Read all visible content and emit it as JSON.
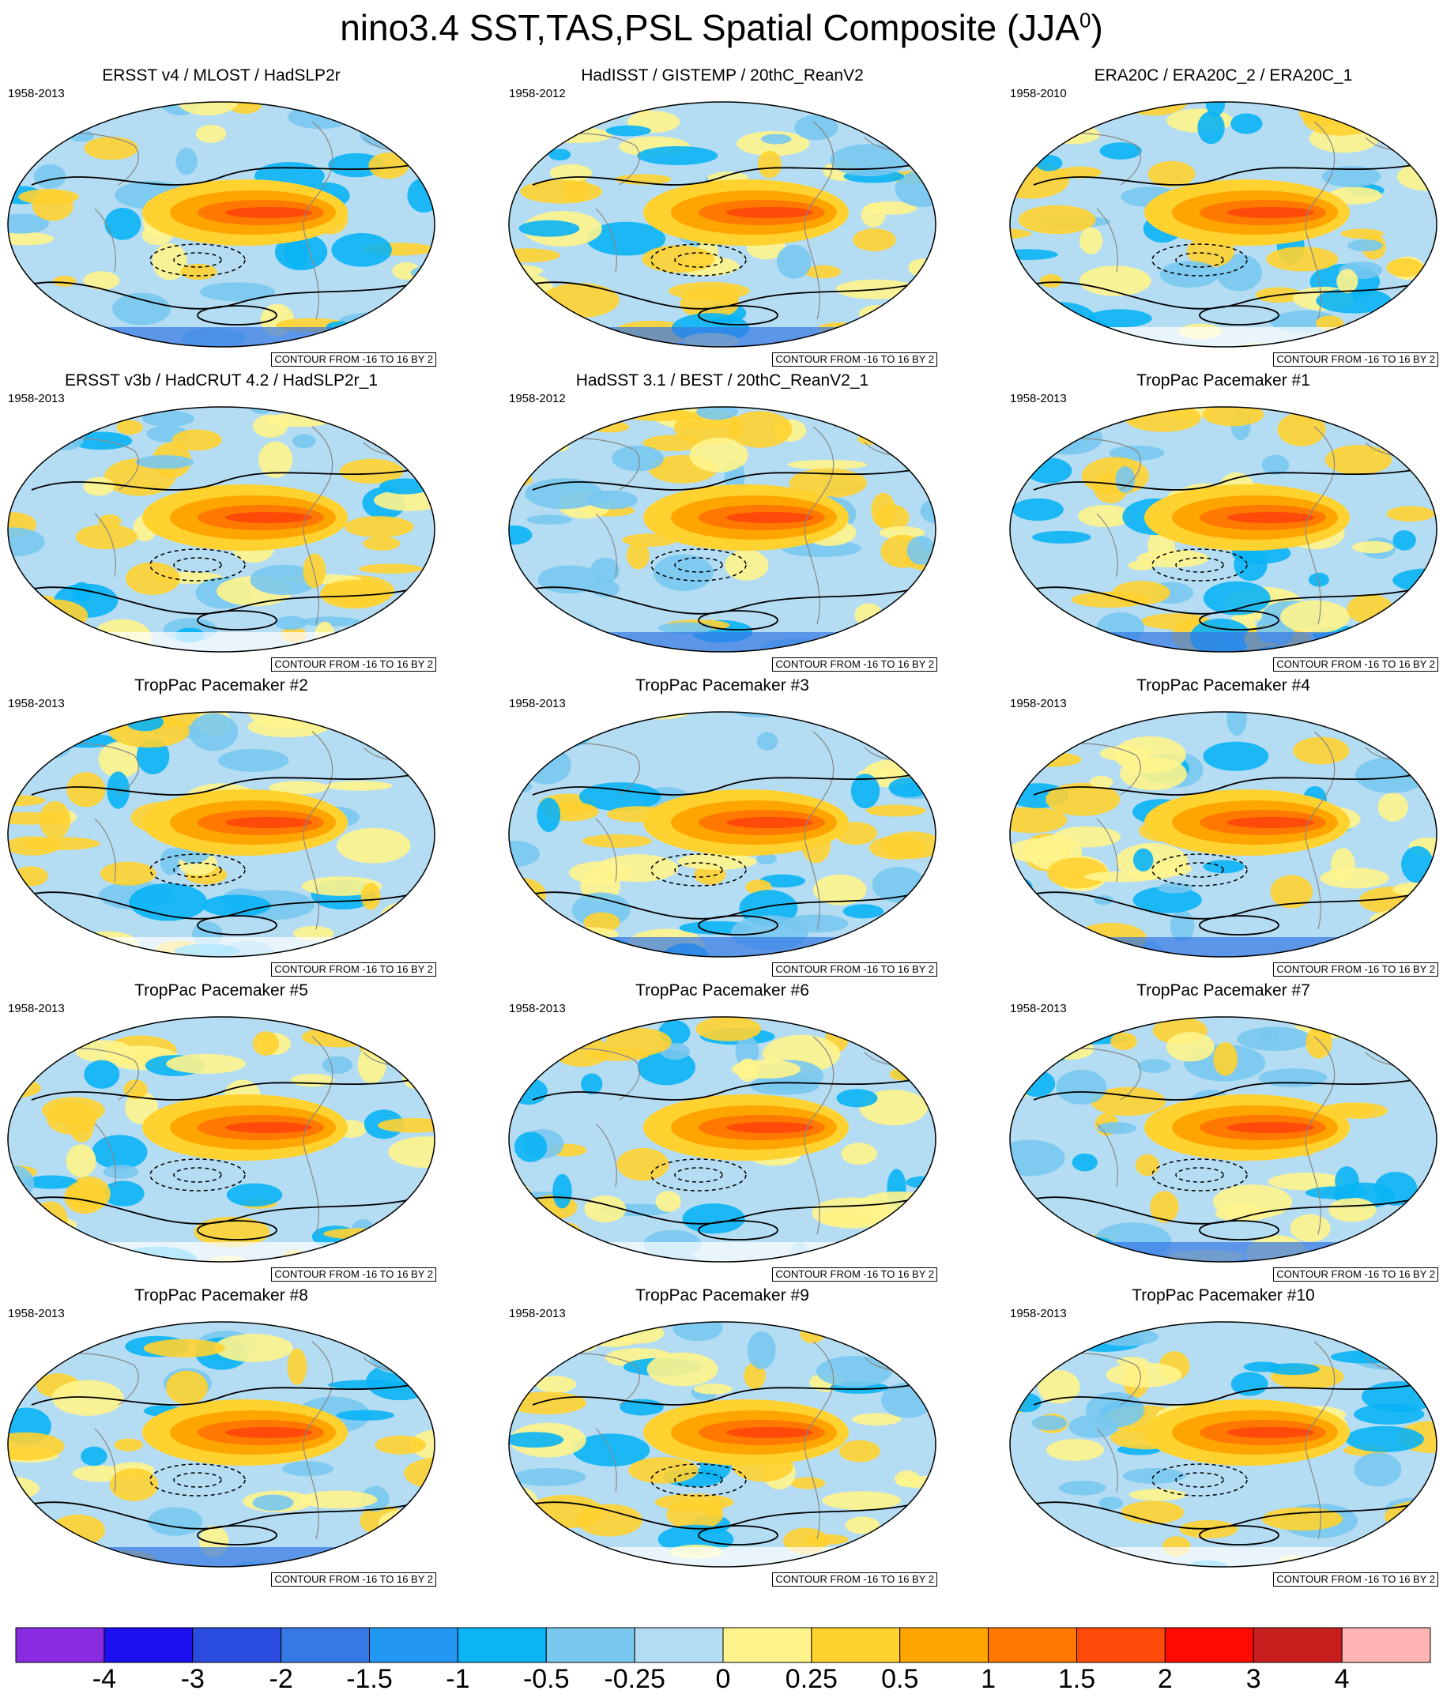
{
  "title": "nino3.4 SST,TAS,PSL Spatial Composite (JJA",
  "title_sup": "0",
  "title_close": ")",
  "contour_note": "CONTOUR FROM -16 TO 16 BY 2",
  "panels": [
    {
      "title": "ERSST v4 / MLOST / HadSLP2r",
      "period": "1958-2013",
      "variant": 0
    },
    {
      "title": "HadISST / GISTEMP / 20thC_ReanV2",
      "period": "1958-2012",
      "variant": 1
    },
    {
      "title": "ERA20C / ERA20C_2 / ERA20C_1",
      "period": "1958-2010",
      "variant": 2
    },
    {
      "title": "ERSST v3b / HadCRUT 4.2 / HadSLP2r_1",
      "period": "1958-2013",
      "variant": 3
    },
    {
      "title": "HadSST 3.1 / BEST / 20thC_ReanV2_1",
      "period": "1958-2012",
      "variant": 4
    },
    {
      "title": "TropPac Pacemaker #1",
      "period": "1958-2013",
      "variant": 5
    },
    {
      "title": "TropPac Pacemaker #2",
      "period": "1958-2013",
      "variant": 6
    },
    {
      "title": "TropPac Pacemaker #3",
      "period": "1958-2013",
      "variant": 7
    },
    {
      "title": "TropPac Pacemaker #4",
      "period": "1958-2013",
      "variant": 8
    },
    {
      "title": "TropPac Pacemaker #5",
      "period": "1958-2013",
      "variant": 9
    },
    {
      "title": "TropPac Pacemaker #6",
      "period": "1958-2013",
      "variant": 10
    },
    {
      "title": "TropPac Pacemaker #7",
      "period": "1958-2013",
      "variant": 11
    },
    {
      "title": "TropPac Pacemaker #8",
      "period": "1958-2013",
      "variant": 12
    },
    {
      "title": "TropPac Pacemaker #9",
      "period": "1958-2013",
      "variant": 13
    },
    {
      "title": "TropPac Pacemaker #10",
      "period": "1958-2013",
      "variant": 14
    }
  ],
  "colorbar": {
    "labels": [
      "-4",
      "-3",
      "-2",
      "-1.5",
      "-1",
      "-0.5",
      "-0.25",
      "0",
      "0.25",
      "0.5",
      "1",
      "1.5",
      "2",
      "3",
      "4"
    ],
    "colors": [
      "#8a2be2",
      "#1a10f0",
      "#2a4be0",
      "#3678e6",
      "#2196f3",
      "#0ab4f5",
      "#78c8f0",
      "#b4dcf2",
      "#fff48c",
      "#ffd230",
      "#ffa500",
      "#ff7800",
      "#ff4a0a",
      "#ff0a00",
      "#c81e1e",
      "#ffb4b4"
    ]
  }
}
